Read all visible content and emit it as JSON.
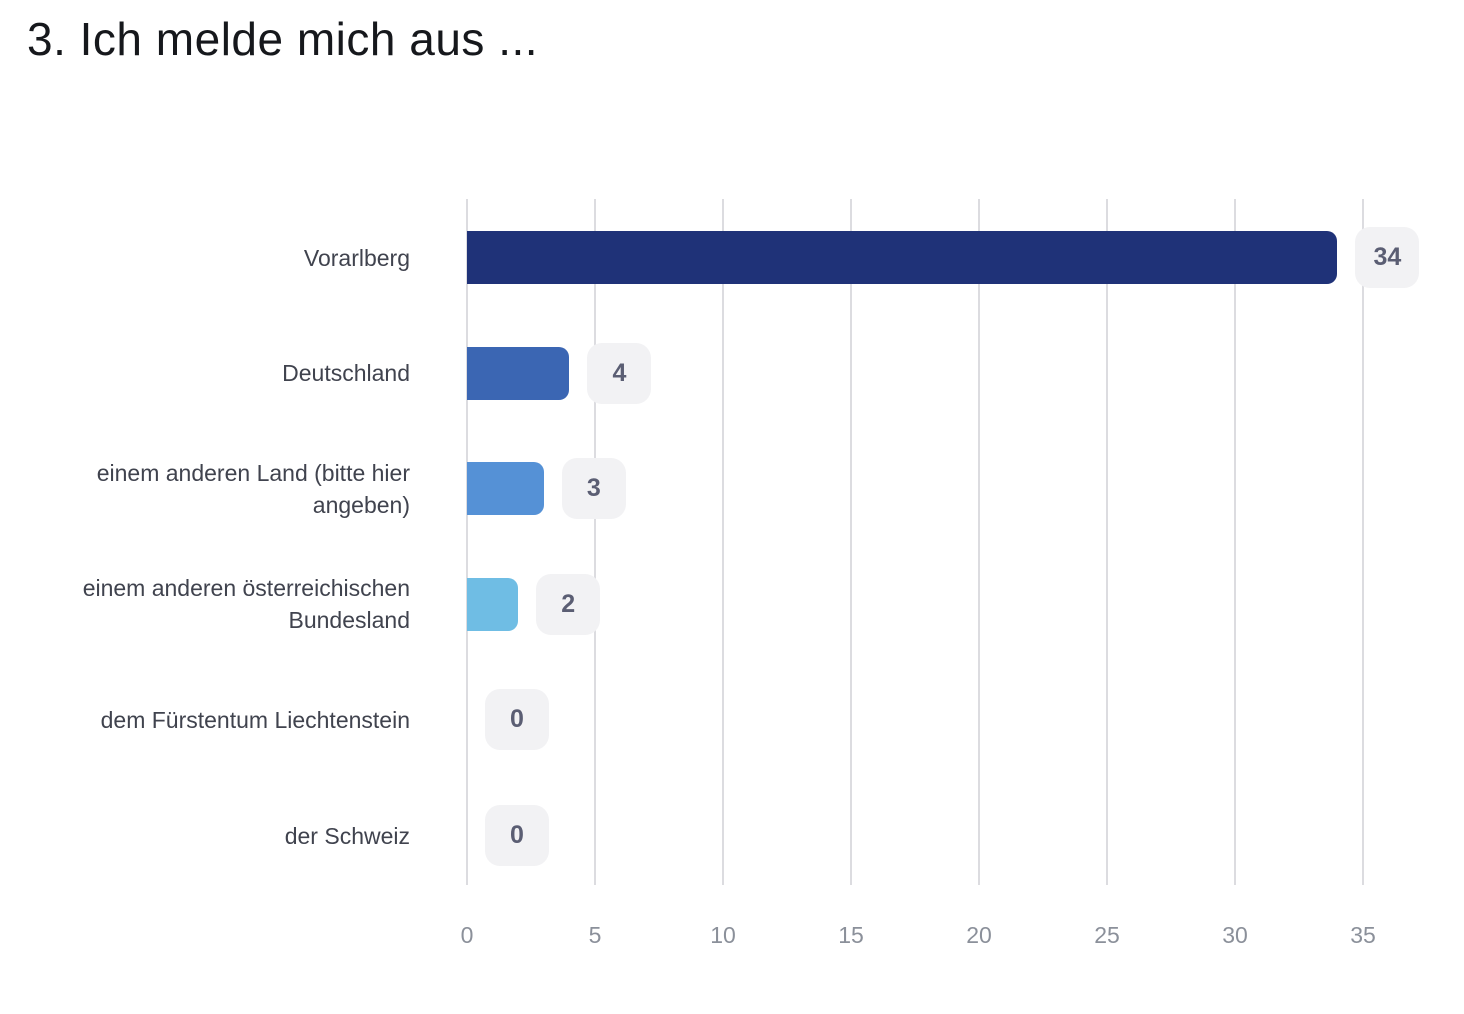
{
  "title": "3. Ich melde mich aus ...",
  "chart_data": {
    "type": "bar",
    "orientation": "horizontal",
    "title": "3. Ich melde mich aus ...",
    "categories": [
      "Vorarlberg",
      "Deutschland",
      "einem anderen Land (bitte hier angeben)",
      "einem anderen österreichischen Bundesland",
      "dem Fürstentum Liechtenstein",
      "der Schweiz"
    ],
    "values": [
      34,
      4,
      3,
      2,
      0,
      0
    ],
    "bar_colors": [
      "#1f3278",
      "#3b66b3",
      "#5591d6",
      "#6fbde4",
      null,
      null
    ],
    "value_labels": [
      34,
      4,
      3,
      2,
      0,
      0
    ],
    "x_ticks": [
      0,
      5,
      10,
      15,
      20,
      25,
      30,
      35
    ],
    "xlim": [
      0,
      35
    ],
    "xlabel": "",
    "ylabel": "",
    "grid": "vertical-only",
    "legend": "none",
    "colors": {
      "gridline": "#dcdce0",
      "tick_text": "#8b909a",
      "category_text": "#40434e",
      "badge_background": "#f2f2f4",
      "badge_text": "#5b5e73",
      "title_text": "#16181c",
      "page_background": "#ffffff"
    }
  }
}
